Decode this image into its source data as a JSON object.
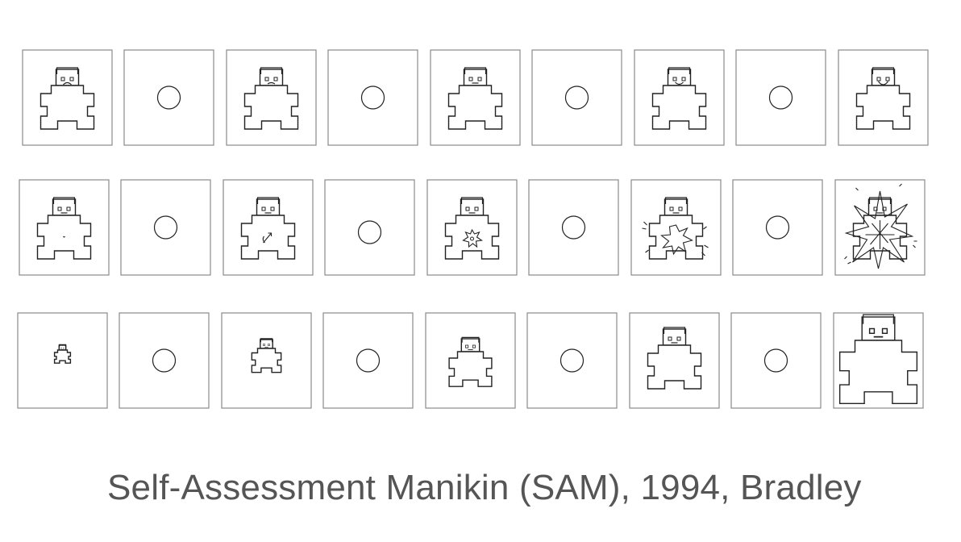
{
  "caption": "Self-Assessment Manikin (SAM), 1994, Bradley",
  "colors": {
    "box_border": "#8a8a8a",
    "line": "#222222",
    "caption_text": "#555555",
    "background": "#ffffff"
  },
  "scales": [
    {
      "id": "valence",
      "items": [
        {
          "kind": "manikin",
          "expression": "frown",
          "arousal": 0,
          "size": 1
        },
        {
          "kind": "circle"
        },
        {
          "kind": "manikin",
          "expression": "slight-frown",
          "arousal": 0,
          "size": 1
        },
        {
          "kind": "circle"
        },
        {
          "kind": "manikin",
          "expression": "neutral",
          "arousal": 0,
          "size": 1
        },
        {
          "kind": "circle"
        },
        {
          "kind": "manikin",
          "expression": "smile",
          "arousal": 0,
          "size": 1
        },
        {
          "kind": "circle"
        },
        {
          "kind": "manikin",
          "expression": "big-smile",
          "arousal": 0,
          "size": 1
        }
      ]
    },
    {
      "id": "arousal",
      "items": [
        {
          "kind": "manikin",
          "expression": "calm",
          "arousal": 1,
          "size": 1
        },
        {
          "kind": "circle"
        },
        {
          "kind": "manikin",
          "expression": "neutral",
          "arousal": 2,
          "size": 1
        },
        {
          "kind": "circle"
        },
        {
          "kind": "manikin",
          "expression": "neutral",
          "arousal": 3,
          "size": 1
        },
        {
          "kind": "circle"
        },
        {
          "kind": "manikin",
          "expression": "neutral",
          "arousal": 4,
          "size": 1
        },
        {
          "kind": "circle"
        },
        {
          "kind": "manikin",
          "expression": "neutral",
          "arousal": 5,
          "size": 1
        }
      ]
    },
    {
      "id": "dominance",
      "items": [
        {
          "kind": "manikin",
          "expression": "neutral",
          "arousal": 0,
          "size": 1
        },
        {
          "kind": "circle"
        },
        {
          "kind": "manikin",
          "expression": "neutral",
          "arousal": 0,
          "size": 2
        },
        {
          "kind": "circle"
        },
        {
          "kind": "manikin",
          "expression": "neutral",
          "arousal": 0,
          "size": 3
        },
        {
          "kind": "circle"
        },
        {
          "kind": "manikin",
          "expression": "neutral",
          "arousal": 0,
          "size": 4
        },
        {
          "kind": "circle"
        },
        {
          "kind": "manikin",
          "expression": "neutral",
          "arousal": 0,
          "size": 5
        }
      ]
    }
  ]
}
